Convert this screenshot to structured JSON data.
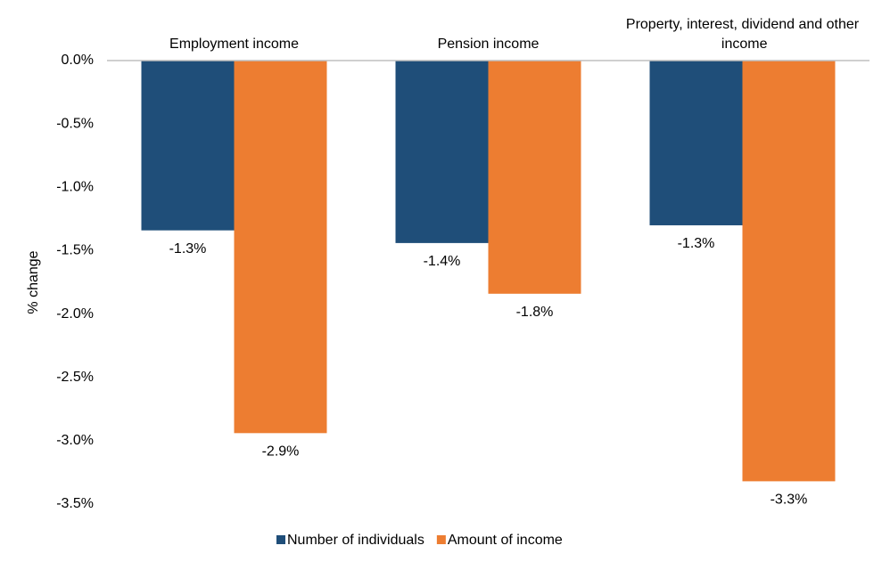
{
  "chart_data": {
    "type": "bar",
    "categories": [
      "Employment income",
      "Pension income",
      "Property, interest, dividend and other income"
    ],
    "series": [
      {
        "name": "Number of individuals",
        "color": "#1f4e79",
        "values": [
          -1.34,
          -1.44,
          -1.3
        ],
        "value_labels": [
          "-1.3%",
          "-1.4%",
          "-1.3%"
        ]
      },
      {
        "name": "Amount of income",
        "color": "#ed7d31",
        "values": [
          -2.94,
          -1.84,
          -3.32
        ],
        "value_labels": [
          "-2.9%",
          "-1.8%",
          "-3.3%"
        ]
      }
    ],
    "y_label": "% change",
    "ylim": [
      -3.5,
      0
    ],
    "yticks": [
      {
        "value": 0,
        "label": "0.0%"
      },
      {
        "value": -0.5,
        "label": "-0.5%"
      },
      {
        "value": -1,
        "label": "-1.0%"
      },
      {
        "value": -1.5,
        "label": "-1.5%"
      },
      {
        "value": -2,
        "label": "-2.0%"
      },
      {
        "value": -2.5,
        "label": "-2.5%"
      },
      {
        "value": -3,
        "label": "-3.0%"
      },
      {
        "value": -3.5,
        "label": "-3.5%"
      }
    ],
    "legend": "bottom",
    "grid": false
  }
}
